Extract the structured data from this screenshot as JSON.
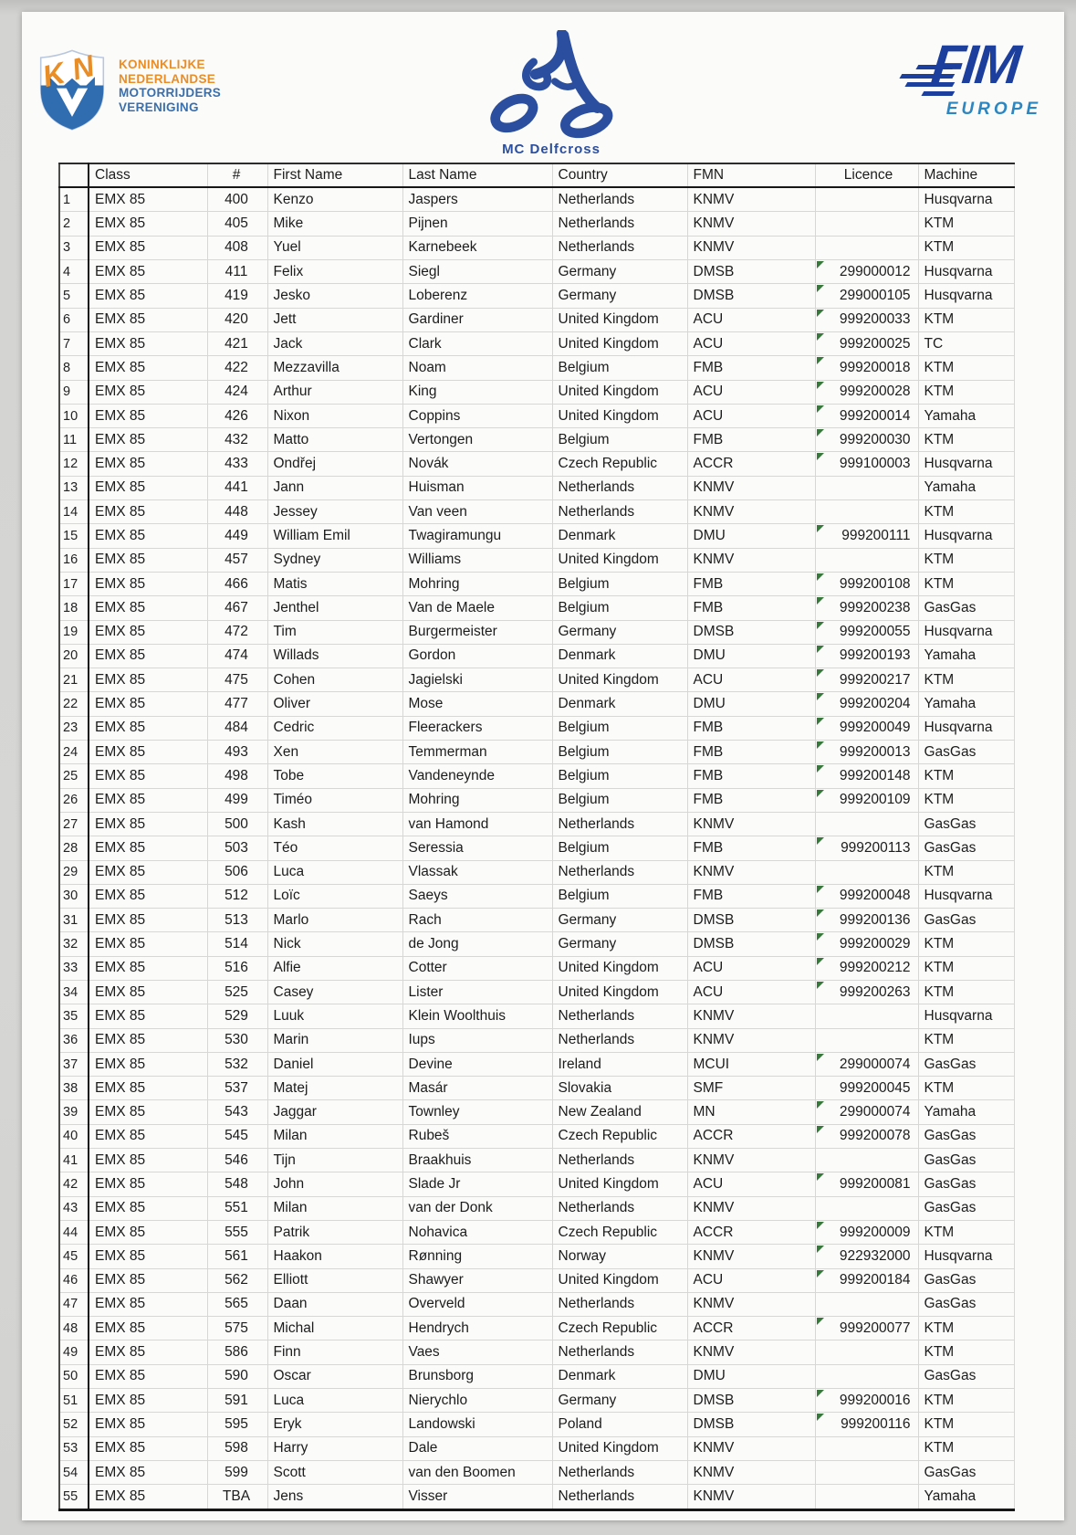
{
  "logos": {
    "knmv": {
      "letter_k": "K",
      "letter_n": "N",
      "lines": [
        "KONINKLIJKE",
        "NEDERLANDSE",
        "MOTORRIJDERS",
        "VERENIGING"
      ]
    },
    "club": {
      "label": "MC Delfcross"
    },
    "fim": {
      "title": "FIM",
      "subtitle": "EUROPE"
    }
  },
  "colors": {
    "knmv_orange": "#e98d27",
    "knmv_blue": "#2f6cb0",
    "club_blue": "#2b4f9e",
    "fim_blue": "#1c3f9e",
    "fim_europe_blue": "#2e86c0",
    "licence_flag_green": "#36793b"
  },
  "table": {
    "headers": {
      "cls": "Class",
      "num": "#",
      "first": "First Name",
      "last": "Last Name",
      "country": "Country",
      "fmn": "FMN",
      "lic": "Licence",
      "machine": "Machine"
    },
    "rows": [
      {
        "n": "1",
        "cls": "EMX 85",
        "num": "400",
        "first": "Kenzo",
        "last": "Jaspers",
        "country": "Netherlands",
        "fmn": "KNMV",
        "lic": "",
        "machine": "Husqvarna",
        "flag": false
      },
      {
        "n": "2",
        "cls": "EMX 85",
        "num": "405",
        "first": "Mike",
        "last": "Pijnen",
        "country": "Netherlands",
        "fmn": "KNMV",
        "lic": "",
        "machine": "KTM",
        "flag": false
      },
      {
        "n": "3",
        "cls": "EMX 85",
        "num": "408",
        "first": "Yuel",
        "last": "Karnebeek",
        "country": "Netherlands",
        "fmn": "KNMV",
        "lic": "",
        "machine": "KTM",
        "flag": false
      },
      {
        "n": "4",
        "cls": "EMX 85",
        "num": "411",
        "first": "Felix",
        "last": "Siegl",
        "country": "Germany",
        "fmn": "DMSB",
        "lic": "299000012",
        "machine": "Husqvarna",
        "flag": true
      },
      {
        "n": "5",
        "cls": "EMX 85",
        "num": "419",
        "first": "Jesko",
        "last": "Loberenz",
        "country": "Germany",
        "fmn": "DMSB",
        "lic": "299000105",
        "machine": "Husqvarna",
        "flag": true
      },
      {
        "n": "6",
        "cls": "EMX 85",
        "num": "420",
        "first": "Jett",
        "last": "Gardiner",
        "country": "United Kingdom",
        "fmn": "ACU",
        "lic": "999200033",
        "machine": "KTM",
        "flag": true
      },
      {
        "n": "7",
        "cls": "EMX 85",
        "num": "421",
        "first": "Jack",
        "last": "Clark",
        "country": "United Kingdom",
        "fmn": "ACU",
        "lic": "999200025",
        "machine": "TC",
        "flag": true
      },
      {
        "n": "8",
        "cls": "EMX 85",
        "num": "422",
        "first": "Mezzavilla",
        "last": "Noam",
        "country": "Belgium",
        "fmn": "FMB",
        "lic": "999200018",
        "machine": "KTM",
        "flag": true
      },
      {
        "n": "9",
        "cls": "EMX 85",
        "num": "424",
        "first": "Arthur",
        "last": "King",
        "country": "United Kingdom",
        "fmn": "ACU",
        "lic": "999200028",
        "machine": "KTM",
        "flag": true
      },
      {
        "n": "10",
        "cls": "EMX 85",
        "num": "426",
        "first": "Nixon",
        "last": "Coppins",
        "country": "United Kingdom",
        "fmn": "ACU",
        "lic": "999200014",
        "machine": "Yamaha",
        "flag": true
      },
      {
        "n": "11",
        "cls": "EMX 85",
        "num": "432",
        "first": "Matto",
        "last": "Vertongen",
        "country": "Belgium",
        "fmn": "FMB",
        "lic": "999200030",
        "machine": "KTM",
        "flag": true
      },
      {
        "n": "12",
        "cls": "EMX 85",
        "num": "433",
        "first": "Ondřej",
        "last": "Novák",
        "country": "Czech Republic",
        "fmn": "ACCR",
        "lic": "999100003",
        "machine": "Husqvarna",
        "flag": true
      },
      {
        "n": "13",
        "cls": "EMX 85",
        "num": "441",
        "first": "Jann",
        "last": "Huisman",
        "country": "Netherlands",
        "fmn": "KNMV",
        "lic": "",
        "machine": "Yamaha",
        "flag": false
      },
      {
        "n": "14",
        "cls": "EMX 85",
        "num": "448",
        "first": "Jessey",
        "last": "Van veen",
        "country": "Netherlands",
        "fmn": "KNMV",
        "lic": "",
        "machine": "KTM",
        "flag": false
      },
      {
        "n": "15",
        "cls": "EMX 85",
        "num": "449",
        "first": "William Emil",
        "last": "Twagiramungu",
        "country": "Denmark",
        "fmn": "DMU",
        "lic": "999200111",
        "machine": "Husqvarna",
        "flag": true
      },
      {
        "n": "16",
        "cls": "EMX 85",
        "num": "457",
        "first": "Sydney",
        "last": "Williams",
        "country": "United Kingdom",
        "fmn": "KNMV",
        "lic": "",
        "machine": "KTM",
        "flag": false
      },
      {
        "n": "17",
        "cls": "EMX 85",
        "num": "466",
        "first": "Matis",
        "last": "Mohring",
        "country": "Belgium",
        "fmn": "FMB",
        "lic": "999200108",
        "machine": "KTM",
        "flag": true
      },
      {
        "n": "18",
        "cls": "EMX 85",
        "num": "467",
        "first": "Jenthel",
        "last": "Van de Maele",
        "country": "Belgium",
        "fmn": "FMB",
        "lic": "999200238",
        "machine": "GasGas",
        "flag": true
      },
      {
        "n": "19",
        "cls": "EMX 85",
        "num": "472",
        "first": "Tim",
        "last": "Burgermeister",
        "country": "Germany",
        "fmn": "DMSB",
        "lic": "999200055",
        "machine": "Husqvarna",
        "flag": true
      },
      {
        "n": "20",
        "cls": "EMX 85",
        "num": "474",
        "first": "Willads",
        "last": "Gordon",
        "country": "Denmark",
        "fmn": "DMU",
        "lic": "999200193",
        "machine": "Yamaha",
        "flag": true
      },
      {
        "n": "21",
        "cls": "EMX 85",
        "num": "475",
        "first": "Cohen",
        "last": "Jagielski",
        "country": "United Kingdom",
        "fmn": "ACU",
        "lic": "999200217",
        "machine": "KTM",
        "flag": true
      },
      {
        "n": "22",
        "cls": "EMX 85",
        "num": "477",
        "first": "Oliver",
        "last": "Mose",
        "country": "Denmark",
        "fmn": "DMU",
        "lic": "999200204",
        "machine": "Yamaha",
        "flag": true
      },
      {
        "n": "23",
        "cls": "EMX 85",
        "num": "484",
        "first": "Cedric",
        "last": "Fleerackers",
        "country": "Belgium",
        "fmn": "FMB",
        "lic": "999200049",
        "machine": "Husqvarna",
        "flag": true
      },
      {
        "n": "24",
        "cls": "EMX 85",
        "num": "493",
        "first": "Xen",
        "last": "Temmerman",
        "country": "Belgium",
        "fmn": "FMB",
        "lic": "999200013",
        "machine": "GasGas",
        "flag": true
      },
      {
        "n": "25",
        "cls": "EMX 85",
        "num": "498",
        "first": "Tobe",
        "last": "Vandeneynde",
        "country": "Belgium",
        "fmn": "FMB",
        "lic": "999200148",
        "machine": "KTM",
        "flag": true
      },
      {
        "n": "26",
        "cls": "EMX 85",
        "num": "499",
        "first": "Timéo",
        "last": "Mohring",
        "country": "Belgium",
        "fmn": "FMB",
        "lic": "999200109",
        "machine": "KTM",
        "flag": true
      },
      {
        "n": "27",
        "cls": "EMX 85",
        "num": "500",
        "first": "Kash",
        "last": "van Hamond",
        "country": "Netherlands",
        "fmn": "KNMV",
        "lic": "",
        "machine": "GasGas",
        "flag": false
      },
      {
        "n": "28",
        "cls": "EMX 85",
        "num": "503",
        "first": "Téo",
        "last": "Seressia",
        "country": "Belgium",
        "fmn": "FMB",
        "lic": "999200113",
        "machine": "GasGas",
        "flag": true
      },
      {
        "n": "29",
        "cls": "EMX 85",
        "num": "506",
        "first": "Luca",
        "last": "Vlassak",
        "country": "Netherlands",
        "fmn": "KNMV",
        "lic": "",
        "machine": "KTM",
        "flag": false
      },
      {
        "n": "30",
        "cls": "EMX 85",
        "num": "512",
        "first": "Loïc",
        "last": "Saeys",
        "country": "Belgium",
        "fmn": "FMB",
        "lic": "999200048",
        "machine": "Husqvarna",
        "flag": true
      },
      {
        "n": "31",
        "cls": "EMX 85",
        "num": "513",
        "first": "Marlo",
        "last": "Rach",
        "country": "Germany",
        "fmn": "DMSB",
        "lic": "999200136",
        "machine": "GasGas",
        "flag": true
      },
      {
        "n": "32",
        "cls": "EMX 85",
        "num": "514",
        "first": "Nick",
        "last": "de Jong",
        "country": "Germany",
        "fmn": "DMSB",
        "lic": "999200029",
        "machine": "KTM",
        "flag": true
      },
      {
        "n": "33",
        "cls": "EMX 85",
        "num": "516",
        "first": "Alfie",
        "last": "Cotter",
        "country": "United Kingdom",
        "fmn": "ACU",
        "lic": "999200212",
        "machine": "KTM",
        "flag": true
      },
      {
        "n": "34",
        "cls": "EMX 85",
        "num": "525",
        "first": "Casey",
        "last": "Lister",
        "country": "United Kingdom",
        "fmn": "ACU",
        "lic": "999200263",
        "machine": "KTM",
        "flag": true
      },
      {
        "n": "35",
        "cls": "EMX 85",
        "num": "529",
        "first": "Luuk",
        "last": "Klein Woolthuis",
        "country": "Netherlands",
        "fmn": "KNMV",
        "lic": "",
        "machine": "Husqvarna",
        "flag": false
      },
      {
        "n": "36",
        "cls": "EMX 85",
        "num": "530",
        "first": "Marin",
        "last": "Iups",
        "country": "Netherlands",
        "fmn": "KNMV",
        "lic": "",
        "machine": "KTM",
        "flag": false
      },
      {
        "n": "37",
        "cls": "EMX 85",
        "num": "532",
        "first": "Daniel",
        "last": "Devine",
        "country": "Ireland",
        "fmn": "MCUI",
        "lic": "299000074",
        "machine": "GasGas",
        "flag": true
      },
      {
        "n": "38",
        "cls": "EMX 85",
        "num": "537",
        "first": "Matej",
        "last": "Masár",
        "country": "Slovakia",
        "fmn": "SMF",
        "lic": "999200045",
        "machine": "KTM",
        "flag": false
      },
      {
        "n": "39",
        "cls": "EMX 85",
        "num": "543",
        "first": "Jaggar",
        "last": "Townley",
        "country": "New Zealand",
        "fmn": "MN",
        "lic": "299000074",
        "machine": "Yamaha",
        "flag": true
      },
      {
        "n": "40",
        "cls": "EMX 85",
        "num": "545",
        "first": "Milan",
        "last": "Rubeš",
        "country": "Czech Republic",
        "fmn": "ACCR",
        "lic": "999200078",
        "machine": "GasGas",
        "flag": true
      },
      {
        "n": "41",
        "cls": "EMX 85",
        "num": "546",
        "first": "Tijn",
        "last": "Braakhuis",
        "country": "Netherlands",
        "fmn": "KNMV",
        "lic": "",
        "machine": "GasGas",
        "flag": false
      },
      {
        "n": "42",
        "cls": "EMX 85",
        "num": "548",
        "first": "John",
        "last": "Slade Jr",
        "country": "United Kingdom",
        "fmn": "ACU",
        "lic": "999200081",
        "machine": "GasGas",
        "flag": true
      },
      {
        "n": "43",
        "cls": "EMX 85",
        "num": "551",
        "first": "Milan",
        "last": "van der Donk",
        "country": "Netherlands",
        "fmn": "KNMV",
        "lic": "",
        "machine": "GasGas",
        "flag": false
      },
      {
        "n": "44",
        "cls": "EMX 85",
        "num": "555",
        "first": "Patrik",
        "last": "Nohavica",
        "country": "Czech Republic",
        "fmn": "ACCR",
        "lic": "999200009",
        "machine": "KTM",
        "flag": true
      },
      {
        "n": "45",
        "cls": "EMX 85",
        "num": "561",
        "first": "Haakon",
        "last": "Rønning",
        "country": "Norway",
        "fmn": "KNMV",
        "lic": "922932000",
        "machine": "Husqvarna",
        "flag": true
      },
      {
        "n": "46",
        "cls": "EMX 85",
        "num": "562",
        "first": "Elliott",
        "last": "Shawyer",
        "country": "United Kingdom",
        "fmn": "ACU",
        "lic": "999200184",
        "machine": "GasGas",
        "flag": true
      },
      {
        "n": "47",
        "cls": "EMX 85",
        "num": "565",
        "first": "Daan",
        "last": "Overveld",
        "country": "Netherlands",
        "fmn": "KNMV",
        "lic": "",
        "machine": "GasGas",
        "flag": false
      },
      {
        "n": "48",
        "cls": "EMX 85",
        "num": "575",
        "first": "Michal",
        "last": "Hendrych",
        "country": "Czech Republic",
        "fmn": "ACCR",
        "lic": "999200077",
        "machine": "KTM",
        "flag": true
      },
      {
        "n": "49",
        "cls": "EMX 85",
        "num": "586",
        "first": "Finn",
        "last": "Vaes",
        "country": "Netherlands",
        "fmn": "KNMV",
        "lic": "",
        "machine": "KTM",
        "flag": false
      },
      {
        "n": "50",
        "cls": "EMX 85",
        "num": "590",
        "first": "Oscar",
        "last": "Brunsborg",
        "country": "Denmark",
        "fmn": "DMU",
        "lic": "",
        "machine": "GasGas",
        "flag": false
      },
      {
        "n": "51",
        "cls": "EMX 85",
        "num": "591",
        "first": "Luca",
        "last": "Nierychlo",
        "country": "Germany",
        "fmn": "DMSB",
        "lic": "999200016",
        "machine": "KTM",
        "flag": true
      },
      {
        "n": "52",
        "cls": "EMX 85",
        "num": "595",
        "first": "Eryk",
        "last": "Landowski",
        "country": "Poland",
        "fmn": "DMSB",
        "lic": "999200116",
        "machine": "KTM",
        "flag": true
      },
      {
        "n": "53",
        "cls": "EMX 85",
        "num": "598",
        "first": "Harry",
        "last": "Dale",
        "country": "United Kingdom",
        "fmn": "KNMV",
        "lic": "",
        "machine": "KTM",
        "flag": false
      },
      {
        "n": "54",
        "cls": "EMX 85",
        "num": "599",
        "first": "Scott",
        "last": "van den Boomen",
        "country": "Netherlands",
        "fmn": "KNMV",
        "lic": "",
        "machine": "GasGas",
        "flag": false
      },
      {
        "n": "55",
        "cls": "EMX 85",
        "num": "TBA",
        "first": "Jens",
        "last": "Visser",
        "country": "Netherlands",
        "fmn": "KNMV",
        "lic": "",
        "machine": "Yamaha",
        "flag": false
      }
    ]
  }
}
